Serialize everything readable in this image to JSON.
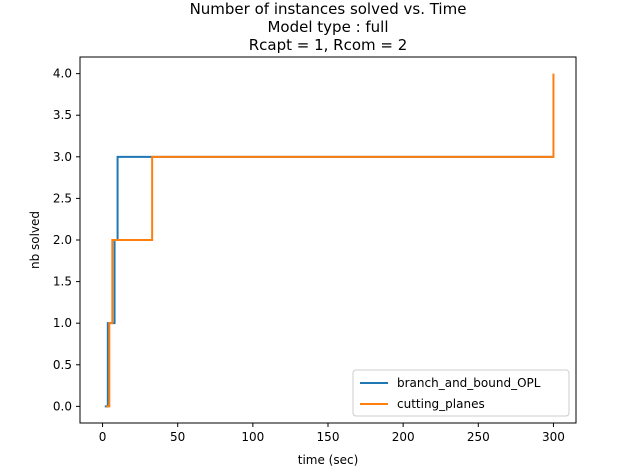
{
  "chart_data": {
    "type": "line",
    "step": "post",
    "title_lines": [
      "Number of instances solved vs. Time",
      "Model type : full",
      "Rcapt = 1, Rcom = 2"
    ],
    "xlabel": "time (sec)",
    "ylabel": "nb solved",
    "xlim": [
      -15,
      315
    ],
    "ylim": [
      -0.2,
      4.2
    ],
    "xticks": [
      0,
      50,
      100,
      150,
      200,
      250,
      300
    ],
    "xtick_labels": [
      "0",
      "50",
      "100",
      "150",
      "200",
      "250",
      "300"
    ],
    "yticks": [
      0,
      0.5,
      1,
      1.5,
      2,
      2.5,
      3,
      3.5,
      4
    ],
    "ytick_labels": [
      "0.0",
      "0.5",
      "1.0",
      "1.5",
      "2.0",
      "2.5",
      "3.0",
      "3.5",
      "4.0"
    ],
    "grid": false,
    "legend_position": "lower-right",
    "series": [
      {
        "name": "branch_and_bound_OPL",
        "color": "#1f77b4",
        "x": [
          1.5,
          3.5,
          8,
          10,
          300
        ],
        "y": [
          0,
          1,
          2,
          3,
          3
        ]
      },
      {
        "name": "cutting_planes",
        "color": "#ff7f0e",
        "x": [
          2.5,
          4.5,
          6.5,
          33,
          300
        ],
        "y": [
          0,
          1,
          2,
          3,
          4
        ]
      }
    ]
  }
}
